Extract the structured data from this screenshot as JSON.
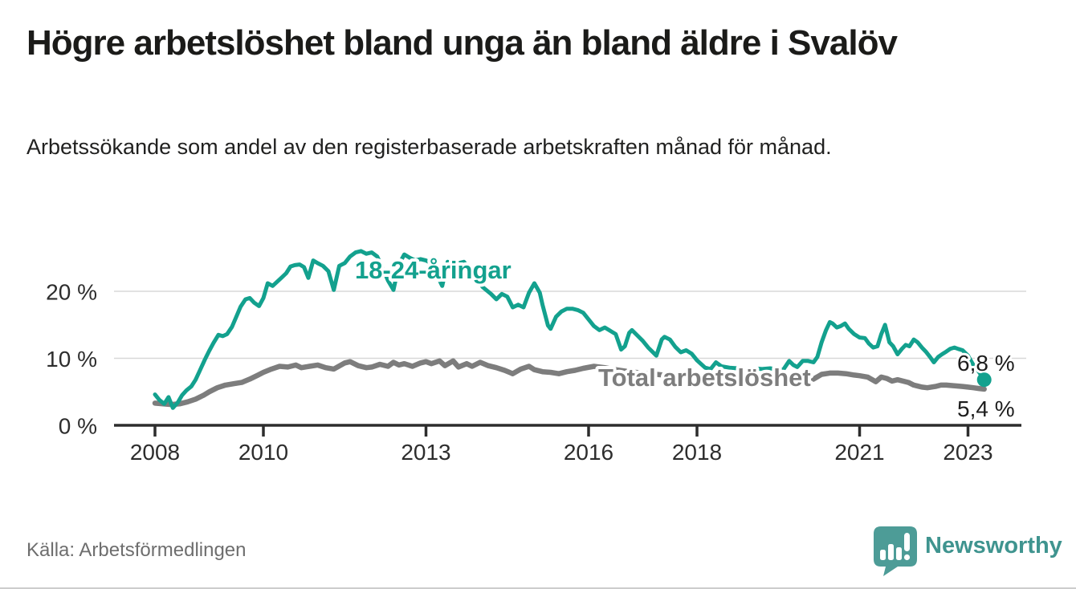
{
  "chart_data": {
    "type": "line",
    "title": "Högre arbetslöshet bland unga än bland äldre i Svalöv",
    "subtitle": "Arbetssökande som andel av den registerbaserade arbetskraften månad för månad.",
    "source": "Källa: Arbetsförmedlingen",
    "unit": "%",
    "grid": "horizontal-only",
    "legend": "inline-labels",
    "xlim": [
      2007.55,
      2023.75
    ],
    "ylim": [
      0,
      27.5
    ],
    "x_axis": {
      "ticks": [
        {
          "label": "2008",
          "value": 2008
        },
        {
          "label": "2010",
          "value": 2010
        },
        {
          "label": "2013",
          "value": 2013
        },
        {
          "label": "2016",
          "value": 2016
        },
        {
          "label": "2018",
          "value": 2018
        },
        {
          "label": "2021",
          "value": 2021
        },
        {
          "label": "2023",
          "value": 2023
        }
      ]
    },
    "y_axis": {
      "ticks": [
        {
          "label": "0 %",
          "value": 0
        },
        {
          "label": "10 %",
          "value": 10
        },
        {
          "label": "20 %",
          "value": 20
        }
      ]
    },
    "series": [
      {
        "name": "18-24-åringar",
        "color": "#13a18e",
        "end_label": "6,8 %",
        "end_value": 6.8,
        "end_dot": true,
        "points": [
          [
            2008.0,
            4.6
          ],
          [
            2008.08,
            3.8
          ],
          [
            2008.17,
            3.2
          ],
          [
            2008.25,
            4.2
          ],
          [
            2008.33,
            2.6
          ],
          [
            2008.42,
            3.4
          ],
          [
            2008.5,
            4.5
          ],
          [
            2008.58,
            5.2
          ],
          [
            2008.67,
            5.8
          ],
          [
            2008.75,
            6.8
          ],
          [
            2008.83,
            8.2
          ],
          [
            2008.92,
            9.8
          ],
          [
            2009.0,
            11.1
          ],
          [
            2009.08,
            12.3
          ],
          [
            2009.17,
            13.5
          ],
          [
            2009.25,
            13.3
          ],
          [
            2009.33,
            13.6
          ],
          [
            2009.42,
            14.7
          ],
          [
            2009.5,
            16.2
          ],
          [
            2009.58,
            17.7
          ],
          [
            2009.67,
            18.8
          ],
          [
            2009.75,
            19.0
          ],
          [
            2009.83,
            18.3
          ],
          [
            2009.92,
            17.8
          ],
          [
            2010.0,
            19.0
          ],
          [
            2010.08,
            21.2
          ],
          [
            2010.17,
            20.8
          ],
          [
            2010.25,
            21.4
          ],
          [
            2010.33,
            22.0
          ],
          [
            2010.42,
            22.7
          ],
          [
            2010.5,
            23.7
          ],
          [
            2010.58,
            23.9
          ],
          [
            2010.67,
            24.0
          ],
          [
            2010.75,
            23.6
          ],
          [
            2010.83,
            22.0
          ],
          [
            2010.92,
            24.6
          ],
          [
            2011.0,
            24.2
          ],
          [
            2011.1,
            23.8
          ],
          [
            2011.2,
            23.0
          ],
          [
            2011.3,
            20.2
          ],
          [
            2011.4,
            23.8
          ],
          [
            2011.5,
            24.2
          ],
          [
            2011.6,
            25.2
          ],
          [
            2011.7,
            25.8
          ],
          [
            2011.8,
            26.0
          ],
          [
            2011.9,
            25.6
          ],
          [
            2012.0,
            25.8
          ],
          [
            2012.1,
            25.2
          ],
          [
            2012.2,
            23.5
          ],
          [
            2012.3,
            21.6
          ],
          [
            2012.4,
            20.2
          ],
          [
            2012.5,
            24.0
          ],
          [
            2012.6,
            25.5
          ],
          [
            2012.7,
            25.0
          ],
          [
            2012.8,
            24.6
          ],
          [
            2012.9,
            24.8
          ],
          [
            2013.0,
            24.6
          ],
          [
            2013.1,
            24.2
          ],
          [
            2013.3,
            20.8
          ],
          [
            2013.4,
            24.4
          ],
          [
            2013.5,
            24.0
          ],
          [
            2013.7,
            24.4
          ],
          [
            2013.8,
            23.4
          ],
          [
            2013.95,
            21.6
          ],
          [
            2014.05,
            20.6
          ],
          [
            2014.2,
            19.6
          ],
          [
            2014.3,
            18.8
          ],
          [
            2014.4,
            19.6
          ],
          [
            2014.5,
            19.2
          ],
          [
            2014.6,
            17.6
          ],
          [
            2014.7,
            18.0
          ],
          [
            2014.8,
            17.6
          ],
          [
            2014.9,
            19.8
          ],
          [
            2015.0,
            21.2
          ],
          [
            2015.1,
            19.8
          ],
          [
            2015.15,
            18.0
          ],
          [
            2015.25,
            14.9
          ],
          [
            2015.3,
            14.4
          ],
          [
            2015.4,
            16.2
          ],
          [
            2015.5,
            17.0
          ],
          [
            2015.6,
            17.4
          ],
          [
            2015.7,
            17.4
          ],
          [
            2015.8,
            17.2
          ],
          [
            2015.9,
            16.8
          ],
          [
            2016.0,
            15.8
          ],
          [
            2016.1,
            14.8
          ],
          [
            2016.2,
            14.2
          ],
          [
            2016.3,
            14.6
          ],
          [
            2016.4,
            14.1
          ],
          [
            2016.5,
            13.6
          ],
          [
            2016.6,
            11.3
          ],
          [
            2016.67,
            11.8
          ],
          [
            2016.75,
            13.8
          ],
          [
            2016.8,
            14.2
          ],
          [
            2016.9,
            13.4
          ],
          [
            2017.0,
            12.6
          ],
          [
            2017.1,
            11.6
          ],
          [
            2017.2,
            10.8
          ],
          [
            2017.25,
            10.4
          ],
          [
            2017.35,
            12.8
          ],
          [
            2017.4,
            13.2
          ],
          [
            2017.5,
            12.8
          ],
          [
            2017.6,
            11.7
          ],
          [
            2017.7,
            10.9
          ],
          [
            2017.8,
            11.2
          ],
          [
            2017.9,
            10.7
          ],
          [
            2018.0,
            9.7
          ],
          [
            2018.15,
            8.6
          ],
          [
            2018.25,
            8.4
          ],
          [
            2018.35,
            9.4
          ],
          [
            2018.45,
            8.8
          ],
          [
            2018.6,
            8.6
          ],
          [
            2018.75,
            8.5
          ],
          [
            2018.9,
            8.3
          ],
          [
            2019.05,
            8.5
          ],
          [
            2019.2,
            8.4
          ],
          [
            2019.35,
            8.5
          ],
          [
            2019.5,
            8.3
          ],
          [
            2019.6,
            8.4
          ],
          [
            2019.7,
            9.6
          ],
          [
            2019.78,
            9.0
          ],
          [
            2019.85,
            8.7
          ],
          [
            2019.95,
            9.6
          ],
          [
            2020.05,
            9.6
          ],
          [
            2020.15,
            9.4
          ],
          [
            2020.22,
            10.2
          ],
          [
            2020.3,
            12.4
          ],
          [
            2020.38,
            14.2
          ],
          [
            2020.45,
            15.4
          ],
          [
            2020.5,
            15.2
          ],
          [
            2020.58,
            14.6
          ],
          [
            2020.65,
            14.8
          ],
          [
            2020.73,
            15.2
          ],
          [
            2020.8,
            14.4
          ],
          [
            2020.9,
            13.6
          ],
          [
            2021.0,
            13.1
          ],
          [
            2021.1,
            13.0
          ],
          [
            2021.17,
            12.2
          ],
          [
            2021.25,
            11.6
          ],
          [
            2021.33,
            11.8
          ],
          [
            2021.4,
            13.6
          ],
          [
            2021.47,
            15.0
          ],
          [
            2021.55,
            12.4
          ],
          [
            2021.62,
            11.8
          ],
          [
            2021.7,
            10.6
          ],
          [
            2021.78,
            11.4
          ],
          [
            2021.85,
            12.0
          ],
          [
            2021.92,
            11.8
          ],
          [
            2022.0,
            12.8
          ],
          [
            2022.07,
            12.4
          ],
          [
            2022.15,
            11.6
          ],
          [
            2022.22,
            11.0
          ],
          [
            2022.3,
            10.2
          ],
          [
            2022.37,
            9.4
          ],
          [
            2022.45,
            10.2
          ],
          [
            2022.52,
            10.6
          ],
          [
            2022.6,
            11.0
          ],
          [
            2022.67,
            11.4
          ],
          [
            2022.75,
            11.6
          ],
          [
            2022.82,
            11.4
          ],
          [
            2022.9,
            11.2
          ],
          [
            2023.0,
            10.4
          ],
          [
            2023.1,
            9.0
          ],
          [
            2023.2,
            8.0
          ],
          [
            2023.3,
            6.8
          ]
        ]
      },
      {
        "name": "Total arbetslöshet",
        "color": "#7d7d7d",
        "end_label": "5,4 %",
        "end_value": 5.4,
        "end_dot": false,
        "points": [
          [
            2008.0,
            3.3
          ],
          [
            2008.15,
            3.2
          ],
          [
            2008.3,
            3.1
          ],
          [
            2008.45,
            3.2
          ],
          [
            2008.6,
            3.5
          ],
          [
            2008.75,
            3.9
          ],
          [
            2008.9,
            4.5
          ],
          [
            2009.0,
            5.0
          ],
          [
            2009.15,
            5.6
          ],
          [
            2009.3,
            6.0
          ],
          [
            2009.45,
            6.2
          ],
          [
            2009.6,
            6.4
          ],
          [
            2009.75,
            6.9
          ],
          [
            2009.9,
            7.5
          ],
          [
            2010.0,
            7.9
          ],
          [
            2010.15,
            8.4
          ],
          [
            2010.3,
            8.8
          ],
          [
            2010.45,
            8.7
          ],
          [
            2010.6,
            9.0
          ],
          [
            2010.7,
            8.6
          ],
          [
            2010.85,
            8.8
          ],
          [
            2011.0,
            9.0
          ],
          [
            2011.15,
            8.6
          ],
          [
            2011.3,
            8.4
          ],
          [
            2011.5,
            9.3
          ],
          [
            2011.6,
            9.5
          ],
          [
            2011.75,
            8.9
          ],
          [
            2011.9,
            8.6
          ],
          [
            2012.0,
            8.7
          ],
          [
            2012.15,
            9.1
          ],
          [
            2012.3,
            8.8
          ],
          [
            2012.4,
            9.4
          ],
          [
            2012.5,
            9.0
          ],
          [
            2012.6,
            9.2
          ],
          [
            2012.75,
            8.8
          ],
          [
            2012.9,
            9.3
          ],
          [
            2013.0,
            9.5
          ],
          [
            2013.1,
            9.2
          ],
          [
            2013.25,
            9.6
          ],
          [
            2013.35,
            8.9
          ],
          [
            2013.5,
            9.6
          ],
          [
            2013.6,
            8.7
          ],
          [
            2013.75,
            9.2
          ],
          [
            2013.85,
            8.8
          ],
          [
            2014.0,
            9.4
          ],
          [
            2014.15,
            8.9
          ],
          [
            2014.3,
            8.6
          ],
          [
            2014.45,
            8.2
          ],
          [
            2014.6,
            7.7
          ],
          [
            2014.75,
            8.4
          ],
          [
            2014.9,
            8.8
          ],
          [
            2015.0,
            8.3
          ],
          [
            2015.15,
            8.0
          ],
          [
            2015.3,
            7.9
          ],
          [
            2015.45,
            7.7
          ],
          [
            2015.6,
            8.0
          ],
          [
            2015.75,
            8.2
          ],
          [
            2015.9,
            8.5
          ],
          [
            2016.1,
            8.8
          ],
          [
            2016.3,
            8.6
          ],
          [
            2016.5,
            8.3
          ],
          [
            2016.75,
            8.0
          ],
          [
            2017.0,
            7.8
          ],
          [
            2017.25,
            7.6
          ],
          [
            2017.5,
            7.4
          ],
          [
            2017.75,
            7.2
          ],
          [
            2018.0,
            7.0
          ],
          [
            2018.25,
            7.0
          ],
          [
            2018.5,
            7.1
          ],
          [
            2018.75,
            7.0
          ],
          [
            2019.0,
            7.1
          ],
          [
            2019.25,
            7.2
          ],
          [
            2019.5,
            7.0
          ],
          [
            2019.7,
            6.7
          ],
          [
            2019.85,
            6.4
          ],
          [
            2020.0,
            6.5
          ],
          [
            2020.15,
            6.9
          ],
          [
            2020.3,
            7.6
          ],
          [
            2020.45,
            7.8
          ],
          [
            2020.6,
            7.8
          ],
          [
            2020.75,
            7.7
          ],
          [
            2020.9,
            7.5
          ],
          [
            2021.0,
            7.4
          ],
          [
            2021.15,
            7.2
          ],
          [
            2021.3,
            6.5
          ],
          [
            2021.4,
            7.2
          ],
          [
            2021.5,
            7.0
          ],
          [
            2021.6,
            6.6
          ],
          [
            2021.7,
            6.8
          ],
          [
            2021.8,
            6.6
          ],
          [
            2021.9,
            6.4
          ],
          [
            2022.0,
            6.0
          ],
          [
            2022.15,
            5.7
          ],
          [
            2022.25,
            5.6
          ],
          [
            2022.4,
            5.8
          ],
          [
            2022.5,
            6.0
          ],
          [
            2022.6,
            6.0
          ],
          [
            2022.75,
            5.9
          ],
          [
            2022.9,
            5.8
          ],
          [
            2023.0,
            5.7
          ],
          [
            2023.1,
            5.6
          ],
          [
            2023.2,
            5.5
          ],
          [
            2023.3,
            5.4
          ]
        ]
      }
    ]
  },
  "footer": {
    "source": "Källa: Arbetsförmedlingen",
    "brand": "Newsworthy"
  },
  "icons": {
    "brand_logo": "bar-chart-speech-bubble-icon"
  },
  "colors": {
    "youth_line": "#13a18e",
    "total_line": "#7d7d7d",
    "gridline": "#d8d8d8",
    "axis": "#2d2d2d",
    "title_text": "#1b1b19",
    "muted_text": "#6e6e6e",
    "brand": "#3f948f",
    "brand_bubble": "#4d9c97"
  }
}
